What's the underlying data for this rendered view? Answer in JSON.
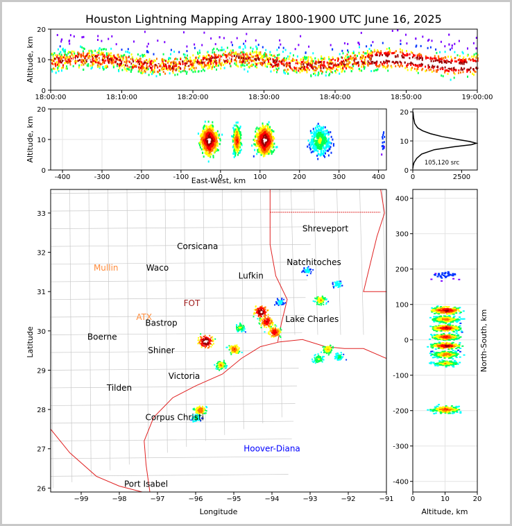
{
  "title": "Houston Lightning Mapping Array 1800-1900 UTC June 16, 2025",
  "chart_data": [
    {
      "id": "time-altitude",
      "type": "heatmap",
      "ylabel": "Altitude, km",
      "xlabel": "",
      "ylim": [
        0,
        20
      ],
      "yticks": [
        0,
        10,
        20
      ],
      "xticks": [
        "18:00:00",
        "18:10:00",
        "18:20:00",
        "18:30:00",
        "18:40:00",
        "18:50:00",
        "19:00:00"
      ],
      "colormap": [
        "#7a00ff",
        "#0033ff",
        "#00ffff",
        "#00ff55",
        "#ffff00",
        "#ff7700",
        "#ff0000",
        "#990000",
        "#ffffff"
      ]
    },
    {
      "id": "ew-altitude",
      "type": "heatmap",
      "xlabel": "East-West, km",
      "ylabel": "Altitude, km",
      "xlim": [
        -430,
        420
      ],
      "ylim": [
        0,
        20
      ],
      "xticks": [
        -400,
        -300,
        -200,
        -100,
        0,
        100,
        200,
        300,
        400
      ],
      "yticks": [
        0,
        10,
        20
      ],
      "clusters_x_km": [
        -30,
        40,
        110,
        240,
        420
      ]
    },
    {
      "id": "altitude-histogram",
      "type": "line",
      "xlim": [
        0,
        3300
      ],
      "ylim": [
        0,
        21
      ],
      "xticks": [
        0,
        2500
      ],
      "yticks": [
        0,
        10,
        20
      ],
      "annotation": "105,120 src",
      "profile": [
        {
          "alt": 0.5,
          "count": 0
        },
        {
          "alt": 1.5,
          "count": 20
        },
        {
          "alt": 2.5,
          "count": 60
        },
        {
          "alt": 4,
          "count": 200
        },
        {
          "alt": 5.5,
          "count": 450
        },
        {
          "alt": 7,
          "count": 1100
        },
        {
          "alt": 8,
          "count": 2100
        },
        {
          "alt": 8.7,
          "count": 3000
        },
        {
          "alt": 9.2,
          "count": 3250
        },
        {
          "alt": 9.8,
          "count": 2900
        },
        {
          "alt": 10.5,
          "count": 2300
        },
        {
          "alt": 11.5,
          "count": 1500
        },
        {
          "alt": 12.5,
          "count": 900
        },
        {
          "alt": 13.5,
          "count": 500
        },
        {
          "alt": 14.5,
          "count": 250
        },
        {
          "alt": 16,
          "count": 100
        },
        {
          "alt": 18,
          "count": 40
        },
        {
          "alt": 20,
          "count": 10
        }
      ]
    },
    {
      "id": "plan-map",
      "type": "scatter",
      "xlabel": "Longitude",
      "ylabel": "Latitude",
      "xlim": [
        -99.8,
        -91
      ],
      "ylim": [
        25.9,
        33.6
      ],
      "xticks": [
        "−99",
        "−98",
        "−97",
        "−96",
        "−95",
        "−94",
        "−93",
        "−92",
        "−91"
      ],
      "xtick_values": [
        -99,
        -98,
        -97,
        -96,
        -95,
        -94,
        -93,
        -92,
        -91
      ],
      "yticks": [
        26,
        27,
        28,
        29,
        30,
        31,
        32,
        33
      ],
      "cities": [
        {
          "name": "Shreveport",
          "lon": -92.6,
          "lat": 32.6,
          "color": "#000000"
        },
        {
          "name": "Corsicana",
          "lon": -95.95,
          "lat": 32.15,
          "color": "#000000"
        },
        {
          "name": "Mullin",
          "lon": -98.35,
          "lat": 31.6,
          "color": "#ff8c3c"
        },
        {
          "name": "Waco",
          "lon": -97.0,
          "lat": 31.6,
          "color": "#000000"
        },
        {
          "name": "Natchitoches",
          "lon": -92.9,
          "lat": 31.75,
          "color": "#000000"
        },
        {
          "name": "Lufkin",
          "lon": -94.55,
          "lat": 31.4,
          "color": "#000000"
        },
        {
          "name": "FOT",
          "lon": -96.1,
          "lat": 30.7,
          "color": "#9e1b1b"
        },
        {
          "name": "ATX",
          "lon": -97.35,
          "lat": 30.35,
          "color": "#ff8c3c"
        },
        {
          "name": "Bastrop",
          "lon": -96.9,
          "lat": 30.2,
          "color": "#000000"
        },
        {
          "name": "Lake Charles",
          "lon": -92.95,
          "lat": 30.3,
          "color": "#000000"
        },
        {
          "name": "Boerne",
          "lon": -98.45,
          "lat": 29.85,
          "color": "#000000"
        },
        {
          "name": "Shiner",
          "lon": -96.9,
          "lat": 29.5,
          "color": "#000000"
        },
        {
          "name": "Victoria",
          "lon": -96.3,
          "lat": 28.85,
          "color": "#000000"
        },
        {
          "name": "Tilden",
          "lon": -98.0,
          "lat": 28.55,
          "color": "#000000"
        },
        {
          "name": "Corpus Christi",
          "lon": -96.55,
          "lat": 27.8,
          "color": "#000000"
        },
        {
          "name": "Hoover-Diana",
          "lon": -94.0,
          "lat": 27.0,
          "color": "#0000ff"
        },
        {
          "name": "Port Isabel",
          "lon": -97.3,
          "lat": 26.1,
          "color": "#000000"
        }
      ],
      "storms": [
        {
          "lon": -95.75,
          "lat": 29.75,
          "intensity": 1.0
        },
        {
          "lon": -95.0,
          "lat": 29.55,
          "intensity": 0.7
        },
        {
          "lon": -95.35,
          "lat": 29.15,
          "intensity": 0.6
        },
        {
          "lon": -94.3,
          "lat": 30.5,
          "intensity": 0.95
        },
        {
          "lon": -94.15,
          "lat": 30.25,
          "intensity": 0.85
        },
        {
          "lon": -93.95,
          "lat": 29.98,
          "intensity": 0.8
        },
        {
          "lon": -94.85,
          "lat": 30.1,
          "intensity": 0.5
        },
        {
          "lon": -92.75,
          "lat": 30.8,
          "intensity": 0.6
        },
        {
          "lon": -92.55,
          "lat": 29.55,
          "intensity": 0.6
        },
        {
          "lon": -92.8,
          "lat": 29.3,
          "intensity": 0.5
        },
        {
          "lon": -92.25,
          "lat": 29.35,
          "intensity": 0.4
        },
        {
          "lon": -95.9,
          "lat": 28.0,
          "intensity": 0.7
        },
        {
          "lon": -96.0,
          "lat": 27.8,
          "intensity": 0.4
        },
        {
          "lon": -92.3,
          "lat": 31.2,
          "intensity": 0.35
        },
        {
          "lon": -93.1,
          "lat": 31.55,
          "intensity": 0.3
        },
        {
          "lon": -93.8,
          "lat": 30.75,
          "intensity": 0.3
        }
      ]
    },
    {
      "id": "ns-altitude",
      "type": "heatmap",
      "xlabel": "Altitude, km",
      "ylabel": "North-South, km",
      "xlim": [
        0,
        20
      ],
      "ylim": [
        -430,
        425
      ],
      "xticks": [
        0,
        10,
        20
      ],
      "yticks": [
        -400,
        -300,
        -200,
        -100,
        0,
        100,
        200,
        300,
        400
      ],
      "clusters_ns_km": [
        85,
        60,
        35,
        10,
        -15,
        -40,
        -65,
        -195
      ]
    }
  ]
}
